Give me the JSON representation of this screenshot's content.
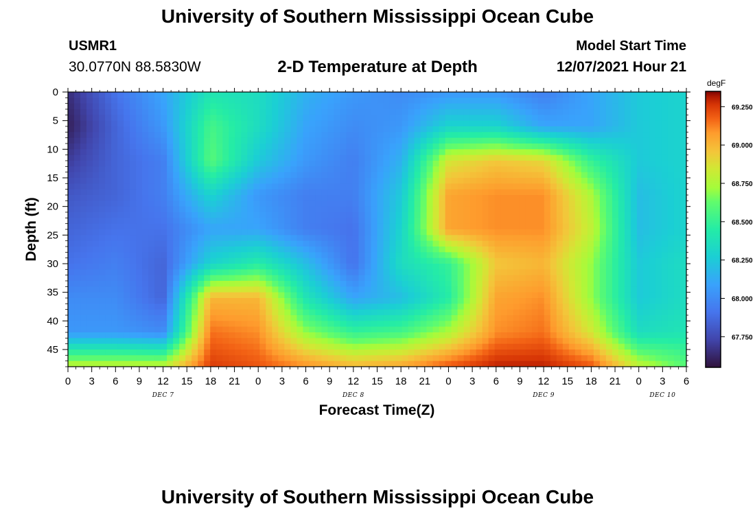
{
  "header": {
    "title": "University of Southern Mississippi Ocean Cube",
    "station": "USMR1",
    "coordinates": "30.0770N  88.5830W",
    "subtitle": "2-D Temperature at Depth",
    "model_start_label": "Model Start Time",
    "model_start_value": "12/07/2021 Hour 21"
  },
  "footer": {
    "title": "University of Southern Mississippi Ocean Cube"
  },
  "chart_data": {
    "type": "heatmap",
    "title": "2-D Temperature at Depth",
    "xlabel": "Forecast Time(Z)",
    "ylabel": "Depth (ft)",
    "x_range_hours": [
      0,
      78
    ],
    "y_range_ft": [
      0,
      48
    ],
    "x_ticks": [
      {
        "hour": 0,
        "label": "0"
      },
      {
        "hour": 3,
        "label": "3"
      },
      {
        "hour": 6,
        "label": "6"
      },
      {
        "hour": 9,
        "label": "9"
      },
      {
        "hour": 12,
        "label": "12"
      },
      {
        "hour": 15,
        "label": "15"
      },
      {
        "hour": 18,
        "label": "18"
      },
      {
        "hour": 21,
        "label": "21"
      },
      {
        "hour": 24,
        "label": "0"
      },
      {
        "hour": 27,
        "label": "3"
      },
      {
        "hour": 30,
        "label": "6"
      },
      {
        "hour": 33,
        "label": "9"
      },
      {
        "hour": 36,
        "label": "12"
      },
      {
        "hour": 39,
        "label": "15"
      },
      {
        "hour": 42,
        "label": "18"
      },
      {
        "hour": 45,
        "label": "21"
      },
      {
        "hour": 48,
        "label": "0"
      },
      {
        "hour": 51,
        "label": "3"
      },
      {
        "hour": 54,
        "label": "6"
      },
      {
        "hour": 57,
        "label": "9"
      },
      {
        "hour": 60,
        "label": "12"
      },
      {
        "hour": 63,
        "label": "15"
      },
      {
        "hour": 66,
        "label": "18"
      },
      {
        "hour": 69,
        "label": "21"
      },
      {
        "hour": 72,
        "label": "0"
      },
      {
        "hour": 75,
        "label": "3"
      },
      {
        "hour": 78,
        "label": "6"
      }
    ],
    "day_labels": [
      {
        "hour": 12,
        "label": "DEC 7"
      },
      {
        "hour": 36,
        "label": "DEC 8"
      },
      {
        "hour": 60,
        "label": "DEC 9"
      },
      {
        "hour": 75,
        "label": "DEC 10"
      }
    ],
    "y_ticks": [
      0,
      5,
      10,
      15,
      20,
      25,
      30,
      35,
      40,
      45
    ],
    "colorbar": {
      "unit": "degF",
      "range": [
        67.55,
        69.35
      ],
      "ticks": [
        "69.250",
        "69.000",
        "68.750",
        "68.500",
        "68.250",
        "68.000",
        "67.750"
      ],
      "tick_values": [
        69.25,
        69.0,
        68.75,
        68.5,
        68.25,
        68.0,
        67.75
      ]
    },
    "grid": false,
    "field_description_approx": {
      "x_hours": [
        0,
        6,
        12,
        18,
        24,
        30,
        36,
        42,
        48,
        54,
        60,
        66,
        72,
        78
      ],
      "depth_ft": [
        0,
        6,
        12,
        18,
        24,
        30,
        36,
        42,
        48
      ],
      "values_degF": [
        [
          67.65,
          67.9,
          68.1,
          68.4,
          68.35,
          68.15,
          68.05,
          68.0,
          68.05,
          68.05,
          67.95,
          68.1,
          68.25,
          68.3
        ],
        [
          67.6,
          67.85,
          68.05,
          68.55,
          68.35,
          68.1,
          68.0,
          68.05,
          68.3,
          68.3,
          68.1,
          68.1,
          68.25,
          68.3
        ],
        [
          67.7,
          67.85,
          67.95,
          68.6,
          68.25,
          68.05,
          67.95,
          68.15,
          68.85,
          68.95,
          68.9,
          68.5,
          68.25,
          68.3
        ],
        [
          67.8,
          67.85,
          67.95,
          68.3,
          68.05,
          67.95,
          67.95,
          68.25,
          69.05,
          69.1,
          69.1,
          68.75,
          68.2,
          68.3
        ],
        [
          67.85,
          67.9,
          67.9,
          68.1,
          68.1,
          67.95,
          67.9,
          68.3,
          69.05,
          69.1,
          69.1,
          68.8,
          68.2,
          68.3
        ],
        [
          67.9,
          67.95,
          67.85,
          68.3,
          68.45,
          68.2,
          67.9,
          68.35,
          68.5,
          68.95,
          69.0,
          68.7,
          68.25,
          68.35
        ],
        [
          68.0,
          68.0,
          67.85,
          69.0,
          69.0,
          68.4,
          68.1,
          68.2,
          68.45,
          69.05,
          69.1,
          68.7,
          68.25,
          68.35
        ],
        [
          68.05,
          68.05,
          68.0,
          69.15,
          69.1,
          68.7,
          68.5,
          68.55,
          68.75,
          69.1,
          69.15,
          68.85,
          68.35,
          68.4
        ],
        [
          68.8,
          68.8,
          68.8,
          69.25,
          69.2,
          69.1,
          69.0,
          69.05,
          69.2,
          69.3,
          69.3,
          69.2,
          68.8,
          68.6
        ]
      ]
    }
  }
}
